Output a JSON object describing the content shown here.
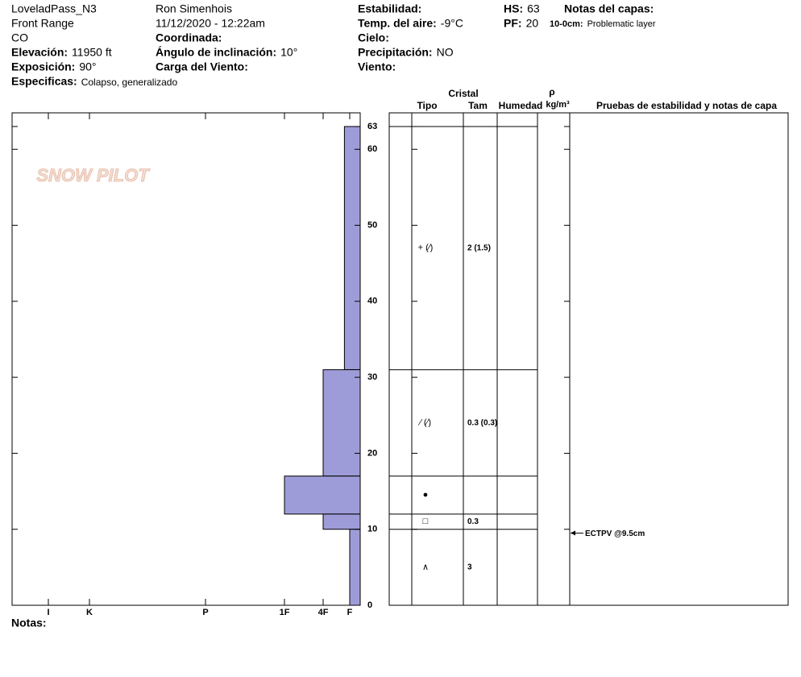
{
  "header": {
    "site": "LoveladPass_N3",
    "range": "Front Range",
    "state": "CO",
    "elevation": {
      "label": "Elevación:",
      "value": "11950 ft"
    },
    "aspect": {
      "label": "Exposición:",
      "value": "90°"
    },
    "specifics": {
      "label": "Especificas:",
      "value": "Colapso, generalizado"
    },
    "observer": "Ron Simenhois",
    "datetime": "11/12/2020 - 12:22am",
    "coordinates": {
      "label": "Coordinada:"
    },
    "slope": {
      "label": "Ángulo de inclinación:",
      "value": "10°"
    },
    "wind_loading": {
      "label": "Carga del Viento:"
    },
    "stability": {
      "label": "Estabilidad:"
    },
    "air_temp": {
      "label": "Temp. del aire:",
      "value": "-9°C"
    },
    "sky": {
      "label": "Cielo:"
    },
    "precip": {
      "label": "Precipitación:",
      "value": "NO"
    },
    "wind": {
      "label": "Viento:"
    },
    "hs": {
      "label": "HS:",
      "value": "63"
    },
    "pf": {
      "label": "PF:",
      "value": "20"
    },
    "layer_notes": {
      "label": "Notas del capas:",
      "items": [
        {
          "label": "10-0cm:",
          "value": "Problematic layer"
        }
      ]
    }
  },
  "watermark": "SNOW PILOT",
  "footer": {
    "notes": "Notas:"
  },
  "chart_data": {
    "type": "snow_profile",
    "ylim": [
      0,
      64.8
    ],
    "yticks": [
      0,
      10,
      20,
      30,
      40,
      50,
      60,
      63
    ],
    "xlim": [
      0,
      7
    ],
    "xticks": [
      {
        "value": 6,
        "label": "I"
      },
      {
        "value": 5,
        "label": "K"
      },
      {
        "value": 4,
        "label": "P"
      },
      {
        "value": 3,
        "label": "1F"
      },
      {
        "value": 2,
        "label": "4F"
      },
      {
        "value": 1,
        "label": "F"
      }
    ],
    "color": "#9e9cd8",
    "table_headers": {
      "crystal": "Cristal",
      "type": "Tipo",
      "size": "Tam",
      "moisture": "Humedad",
      "rho": "ρ",
      "density": "kg/m³",
      "tests": "Pruebas de estabilidad y notas de capa"
    },
    "layers": [
      {
        "top": 63,
        "bottom": 31,
        "hardness": 1.2,
        "grain": "+ (⁄)",
        "size": "2 (1.5)"
      },
      {
        "top": 31,
        "bottom": 17,
        "hardness": 2,
        "grain": "⁄ (⁄)",
        "size": "0.3 (0.3)"
      },
      {
        "top": 17,
        "bottom": 12,
        "hardness": 3,
        "grain": "●"
      },
      {
        "top": 12,
        "bottom": 10,
        "hardness": 2,
        "grain": "□",
        "size": "0.3"
      },
      {
        "top": 10,
        "bottom": 0,
        "hardness": 1,
        "grain": "∧",
        "size": "3"
      }
    ],
    "tests": [
      {
        "depth": 9.5,
        "label": "ECTPV @9.5cm"
      }
    ]
  }
}
